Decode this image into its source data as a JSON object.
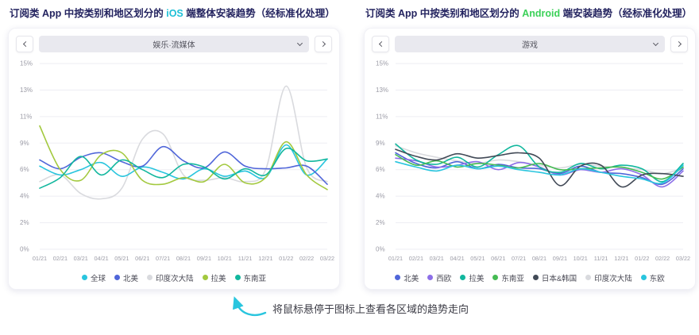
{
  "panels": [
    {
      "title": {
        "prefix": "订阅类 App 中按类别和地区划分的 ",
        "highlight": "iOS",
        "suffix": " 端整体安装趋势（经标准化处理）",
        "highlight_color": "#1ec0d7"
      },
      "selector": {
        "value": "娱乐·流媒体",
        "prev_icon": "chevron-left",
        "next_icon": "chevron-right",
        "dropdown_icon": "chevron-down"
      }
    },
    {
      "title": {
        "prefix": "订阅类 App 中按类别和地区划分的 ",
        "highlight": "Android",
        "suffix": " 端安装趋势（经标准化处理）",
        "highlight_color": "#3bd158"
      },
      "selector": {
        "value": "游戏",
        "prev_icon": "chevron-left",
        "next_icon": "chevron-right",
        "dropdown_icon": "chevron-down"
      }
    }
  ],
  "annotation": {
    "text": "将鼠标悬停于图标上查看各区域的趋势走向",
    "arrow_color": "#29c5de"
  },
  "chart_data": [
    {
      "type": "line",
      "title": "订阅类 App 中按类别和地区划分的 iOS 端整体安装趋势（经标准化处理）",
      "category": "娱乐·流媒体",
      "x": [
        "01/21",
        "02/21",
        "03/21",
        "04/21",
        "05/21",
        "06/21",
        "07/21",
        "08/21",
        "09/21",
        "10/21",
        "11/21",
        "12/21",
        "01/22",
        "02/22",
        "03/22"
      ],
      "yticks": {
        "values": [
          0,
          2,
          4,
          6,
          9,
          11,
          13,
          15
        ],
        "labels": [
          "0%",
          "2%",
          "4%",
          "6%",
          "9%",
          "11%",
          "13%",
          "15%"
        ]
      },
      "ylim": [
        0,
        15
      ],
      "grid": true,
      "legend_position": "bottom",
      "series": [
        {
          "name": "全球",
          "color": "#29c5de",
          "values": [
            6.4,
            5.6,
            6.0,
            6.8,
            5.5,
            6.3,
            5.8,
            5.3,
            6.1,
            5.5,
            5.9,
            5.4,
            8.8,
            5.6,
            7.2
          ]
        },
        {
          "name": "北美",
          "color": "#5066d9",
          "values": [
            7.1,
            6.1,
            7.4,
            7.9,
            6.9,
            6.4,
            8.6,
            7.0,
            6.2,
            8.0,
            6.4,
            6.1,
            6.2,
            6.4,
            4.9
          ]
        },
        {
          "name": "印度次大陆",
          "color": "#d9dade",
          "behind": true,
          "values": [
            5.1,
            5.6,
            4.2,
            3.8,
            4.6,
            9.3,
            9.7,
            5.6,
            5.2,
            5.4,
            5.1,
            6.0,
            13.3,
            6.2,
            5.1
          ]
        },
        {
          "name": "拉美",
          "color": "#a3c93f",
          "values": [
            10.3,
            6.0,
            5.2,
            7.7,
            7.9,
            5.2,
            4.9,
            5.4,
            5.1,
            6.6,
            5.0,
            5.4,
            9.1,
            5.6,
            4.5
          ]
        },
        {
          "name": "东南亚",
          "color": "#12b79e",
          "values": [
            4.6,
            5.4,
            7.5,
            5.6,
            7.1,
            6.0,
            5.4,
            6.6,
            6.3,
            5.3,
            6.1,
            5.6,
            8.4,
            7.0,
            7.2
          ]
        }
      ]
    },
    {
      "type": "line",
      "title": "订阅类 App 中按类别和地区划分的 Android 端安装趋势（经标准化处理）",
      "category": "游戏",
      "x": [
        "01/21",
        "02/21",
        "03/21",
        "04/21",
        "05/21",
        "06/21",
        "07/21",
        "08/21",
        "09/21",
        "10/21",
        "11/21",
        "12/21",
        "01/22",
        "02/22",
        "03/22"
      ],
      "yticks": {
        "values": [
          0,
          2,
          4,
          6,
          9,
          11,
          13,
          15
        ],
        "labels": [
          "0%",
          "2%",
          "4%",
          "6%",
          "9%",
          "11%",
          "13%",
          "15%"
        ]
      },
      "ylim": [
        0,
        15
      ],
      "grid": true,
      "legend_position": "bottom",
      "series": [
        {
          "name": "北美",
          "color": "#5066d9",
          "values": [
            7.9,
            6.7,
            6.2,
            6.9,
            6.1,
            6.6,
            6.2,
            6.1,
            5.7,
            6.4,
            5.8,
            5.7,
            5.4,
            4.9,
            6.1
          ]
        },
        {
          "name": "西欧",
          "color": "#8d6fe8",
          "values": [
            7.3,
            7.0,
            6.3,
            6.5,
            6.9,
            6.0,
            6.8,
            6.3,
            5.6,
            6.0,
            5.8,
            6.1,
            5.6,
            4.7,
            5.9
          ]
        },
        {
          "name": "拉美",
          "color": "#12b79e",
          "values": [
            8.9,
            7.1,
            6.6,
            7.4,
            6.3,
            7.7,
            8.7,
            6.3,
            5.8,
            6.7,
            6.1,
            6.5,
            6.1,
            5.1,
            6.7
          ]
        },
        {
          "name": "东南亚",
          "color": "#46bb53",
          "values": [
            7.7,
            6.5,
            7.0,
            6.3,
            6.7,
            6.5,
            6.2,
            6.7,
            6.0,
            6.1,
            6.2,
            6.3,
            5.8,
            5.3,
            6.3
          ]
        },
        {
          "name": "日本&韩国",
          "color": "#424a57",
          "values": [
            8.3,
            7.5,
            7.1,
            7.8,
            7.3,
            7.6,
            7.9,
            7.3,
            4.8,
            6.4,
            6.5,
            4.7,
            5.6,
            5.7,
            5.5
          ]
        },
        {
          "name": "印度次大陆",
          "color": "#d9dade",
          "behind": true,
          "values": [
            8.7,
            7.9,
            7.4,
            7.0,
            6.7,
            7.1,
            6.9,
            6.5,
            6.2,
            6.6,
            6.4,
            6.2,
            6.0,
            5.7,
            6.2
          ]
        },
        {
          "name": "东欧",
          "color": "#29c5de",
          "values": [
            6.9,
            6.3,
            5.9,
            6.5,
            6.1,
            6.4,
            6.0,
            5.8,
            5.6,
            6.1,
            5.8,
            5.5,
            5.3,
            5.0,
            6.5
          ]
        }
      ]
    }
  ]
}
